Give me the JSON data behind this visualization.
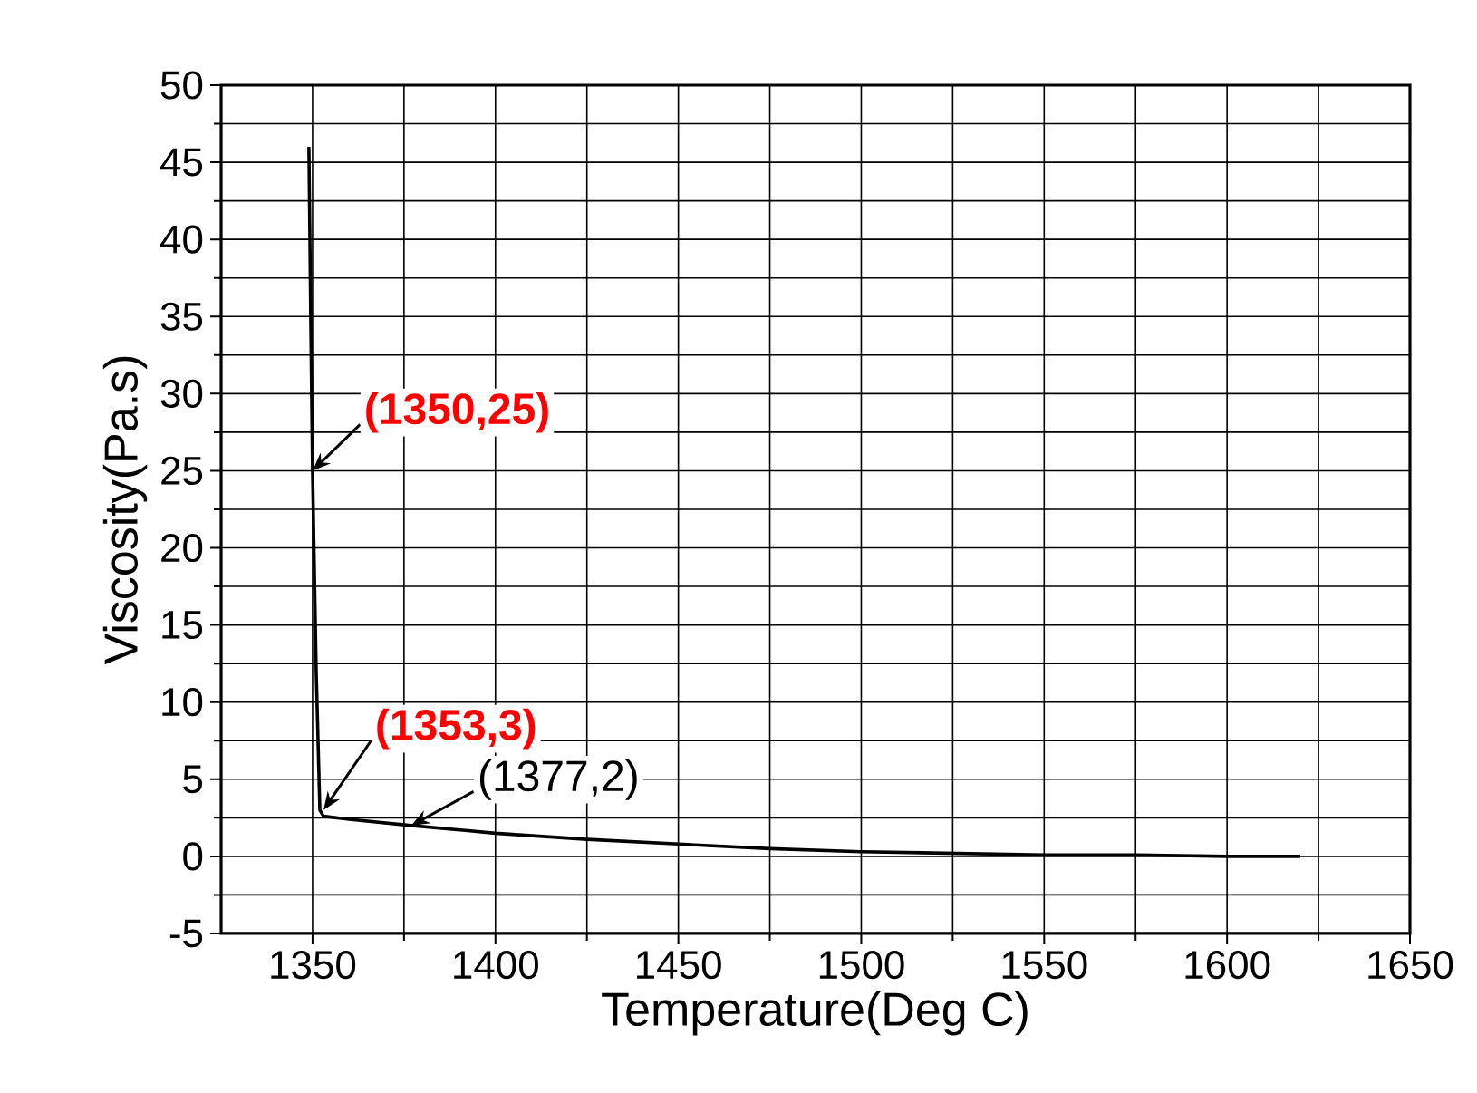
{
  "chart_data": {
    "type": "line",
    "xlabel": "Temperature(Deg C)",
    "ylabel": "Viscosity(Pa.s)",
    "xlim": [
      1325,
      1650
    ],
    "xticks": [
      1350,
      1400,
      1450,
      1500,
      1550,
      1600,
      1650
    ],
    "ylim": [
      -5,
      50
    ],
    "yticks": [
      -5,
      0,
      5,
      10,
      15,
      20,
      25,
      30,
      35,
      40,
      45,
      50
    ],
    "grid": true,
    "marker": "none",
    "line_style": "solid",
    "series": [
      {
        "color": "#000000",
        "x": [
          1349,
          1349.5,
          1350,
          1351,
          1352,
          1353,
          1360,
          1377,
          1400,
          1425,
          1450,
          1475,
          1500,
          1525,
          1550,
          1575,
          1600,
          1620
        ],
        "values": [
          46,
          35,
          25,
          12,
          3,
          2.6,
          2.4,
          2,
          1.5,
          1.1,
          0.8,
          0.5,
          0.3,
          0.2,
          0.1,
          0.1,
          0,
          0
        ]
      }
    ],
    "annotations": [
      {
        "text": "(1350,25)",
        "x": 1350,
        "y": 25
      },
      {
        "text": "(1353,3)",
        "x": 1353,
        "y": 3
      },
      {
        "text": "(1377,2)",
        "x": 1377,
        "y": 2
      }
    ]
  }
}
